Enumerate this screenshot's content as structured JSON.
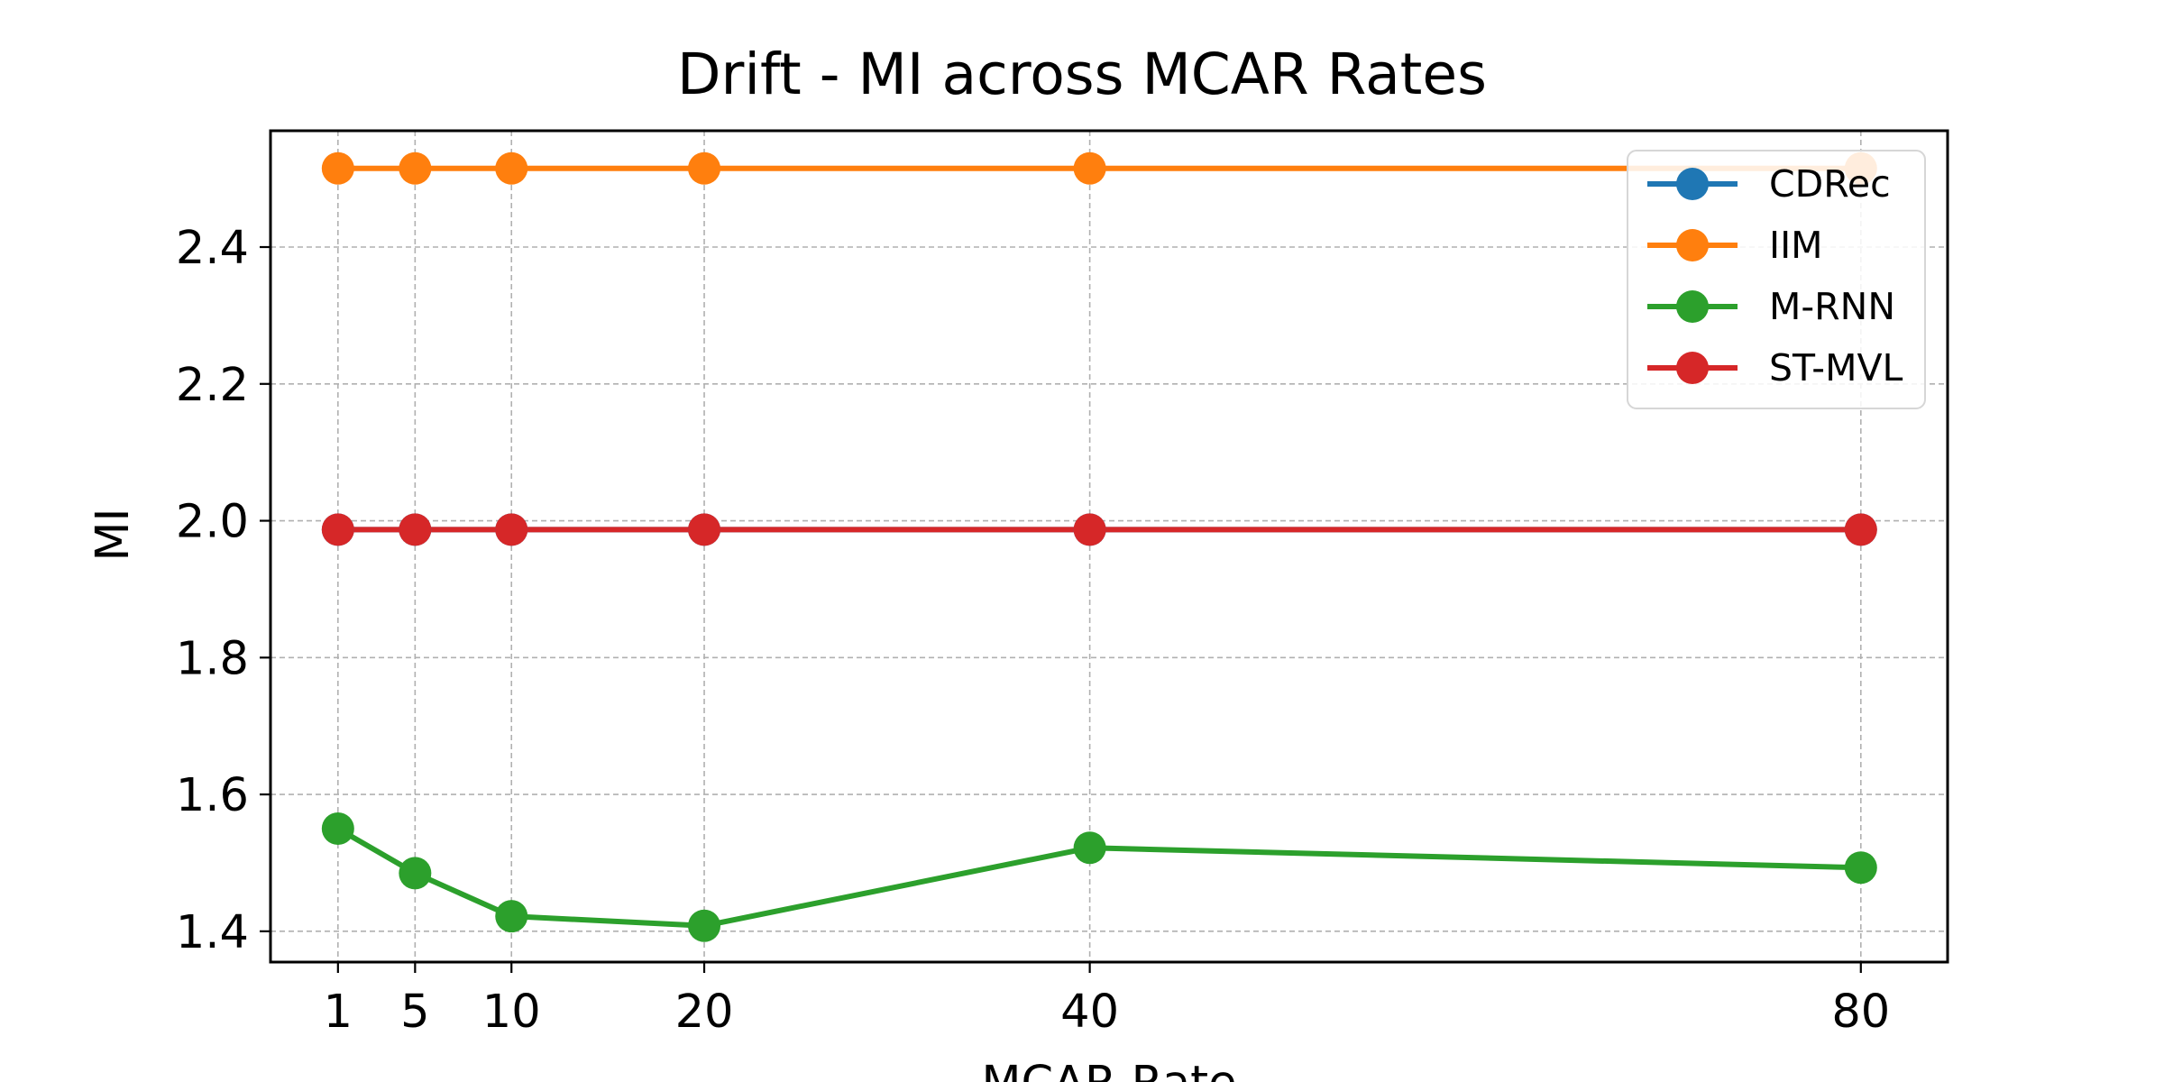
{
  "chart_data": {
    "type": "line",
    "title": "Drift - MI across MCAR Rates",
    "xlabel": "MCAR Rate",
    "ylabel": "MI",
    "x": [
      1,
      5,
      10,
      20,
      40,
      80
    ],
    "x_tick_labels": [
      "1",
      "5",
      "10",
      "20",
      "40",
      "80"
    ],
    "ylim": [
      1.355,
      2.57
    ],
    "y_ticks": [
      1.4,
      1.6,
      1.8,
      2.0,
      2.2,
      2.4
    ],
    "y_tick_labels": [
      "1.4",
      "1.6",
      "1.8",
      "2.0",
      "2.2",
      "2.4"
    ],
    "grid": true,
    "legend_position": "top-right",
    "series": [
      {
        "name": "CDRec",
        "color": "#1f77b4",
        "values": [
          1.987,
          1.987,
          1.987,
          1.987,
          1.987,
          1.987
        ]
      },
      {
        "name": "IIM",
        "color": "#ff7f0e",
        "values": [
          2.515,
          2.515,
          2.515,
          2.515,
          2.515,
          2.515
        ]
      },
      {
        "name": "M-RNN",
        "color": "#2ca02c",
        "values": [
          1.55,
          1.485,
          1.422,
          1.408,
          1.522,
          1.493
        ]
      },
      {
        "name": "ST-MVL",
        "color": "#d62728",
        "values": [
          1.987,
          1.987,
          1.987,
          1.987,
          1.987,
          1.987
        ]
      }
    ]
  }
}
